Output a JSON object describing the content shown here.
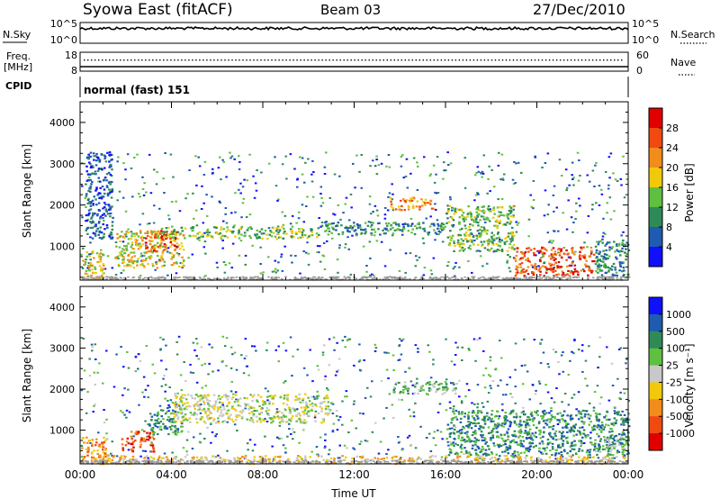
{
  "header": {
    "station": "Syowa East (fitACF)",
    "beam": "Beam 03",
    "date": "27/Dec/2010"
  },
  "strip_panels": {
    "nsky": {
      "label": "N.Sky",
      "tick_top": "10^5",
      "tick_bottom": "10^0"
    },
    "nsearch": {
      "label": "N.Search",
      "tick_top": "10^5",
      "tick_bottom": "10^0"
    },
    "freq": {
      "label_line1": "Freq.",
      "label_line2": "[MHz]",
      "tick_top": "18",
      "tick_bottom": "8"
    },
    "nave": {
      "label": "Nave",
      "tick_top": "60",
      "tick_bottom": "0"
    },
    "cpid": {
      "label": "CPID",
      "value": "normal (fast) 151"
    }
  },
  "chart_data": [
    {
      "type": "heatmap",
      "panel": "power",
      "ylabel": "Slant Range [km]",
      "ylim": [
        180,
        4500
      ],
      "yticks": [
        "1000",
        "2000",
        "3000",
        "4000"
      ],
      "xlim": [
        "00:00",
        "24:00"
      ],
      "colorbar": {
        "label": "Power [dB]",
        "ticks": [
          "4",
          "8",
          "12",
          "16",
          "20",
          "24",
          "28"
        ],
        "colors": [
          "#1010ff",
          "#1f5bb0",
          "#2e8b57",
          "#5fc040",
          "#f2c90a",
          "#f28c1a",
          "#f04a10",
          "#e00000"
        ]
      },
      "regions": [
        {
          "t0": 0.0,
          "t1": 1.0,
          "r0": 200,
          "r1": 900,
          "level": 4
        },
        {
          "t0": 0.2,
          "t1": 1.4,
          "r0": 1200,
          "r1": 3300,
          "level": 1
        },
        {
          "t0": 1.5,
          "t1": 4.5,
          "r0": 500,
          "r1": 1400,
          "level": 4
        },
        {
          "t0": 2.8,
          "t1": 4.2,
          "r0": 900,
          "r1": 1400,
          "level": 6
        },
        {
          "t0": 3.5,
          "t1": 10.5,
          "r0": 1200,
          "r1": 1500,
          "level": 3
        },
        {
          "t0": 10.5,
          "t1": 16.0,
          "r0": 1300,
          "r1": 1600,
          "level": 2
        },
        {
          "t0": 13.5,
          "t1": 15.5,
          "r0": 1900,
          "r1": 2200,
          "level": 5
        },
        {
          "t0": 16.0,
          "t1": 19.0,
          "r0": 900,
          "r1": 2000,
          "level": 3
        },
        {
          "t0": 19.0,
          "t1": 22.5,
          "r0": 300,
          "r1": 1000,
          "level": 6
        },
        {
          "t0": 22.5,
          "t1": 24.0,
          "r0": 300,
          "r1": 1200,
          "level": 2
        }
      ],
      "ground_scatter_band": {
        "t0": 0.0,
        "t1": 24.0,
        "r0": 200,
        "r1": 280
      }
    },
    {
      "type": "heatmap",
      "panel": "velocity",
      "ylabel": "Slant Range [km]",
      "ylim": [
        180,
        4500
      ],
      "yticks": [
        "1000",
        "2000",
        "3000",
        "4000"
      ],
      "xlabel": "Time UT",
      "xticks": [
        "00:00",
        "04:00",
        "08:00",
        "12:00",
        "16:00",
        "20:00",
        "00:00"
      ],
      "xlim": [
        "00:00",
        "24:00"
      ],
      "colorbar": {
        "label": "Velocity [m s⁻¹]",
        "ticks": [
          "1000",
          "500",
          "100",
          "25",
          "-25",
          "-100",
          "-500",
          "-1000"
        ],
        "colors": [
          "#1010ff",
          "#1f5bb0",
          "#2e8b57",
          "#5fc040",
          "#c8c8c8",
          "#f2c90a",
          "#f28c1a",
          "#f04a10",
          "#e00000"
        ]
      },
      "regions": [
        {
          "t0": 0.0,
          "t1": 1.2,
          "r0": 200,
          "r1": 900,
          "level": 6
        },
        {
          "t0": 1.8,
          "t1": 3.2,
          "r0": 500,
          "r1": 1000,
          "level": 7
        },
        {
          "t0": 3.0,
          "t1": 4.5,
          "r0": 900,
          "r1": 1600,
          "level": 2
        },
        {
          "t0": 4.0,
          "t1": 11.0,
          "r0": 1200,
          "r1": 1900,
          "level": 4
        },
        {
          "t0": 0.5,
          "t1": 24.0,
          "r0": 200,
          "r1": 400,
          "level": 5
        },
        {
          "t0": 13.5,
          "t1": 16.5,
          "r0": 1900,
          "r1": 2200,
          "level": 3
        },
        {
          "t0": 16.0,
          "t1": 24.0,
          "r0": 400,
          "r1": 1500,
          "level": 2
        },
        {
          "t0": 22.5,
          "t1": 24.0,
          "r0": 500,
          "r1": 900,
          "level": 3
        }
      ],
      "ground_scatter_band": {
        "t0": 0.0,
        "t1": 24.0,
        "r0": 200,
        "r1": 280
      }
    }
  ]
}
